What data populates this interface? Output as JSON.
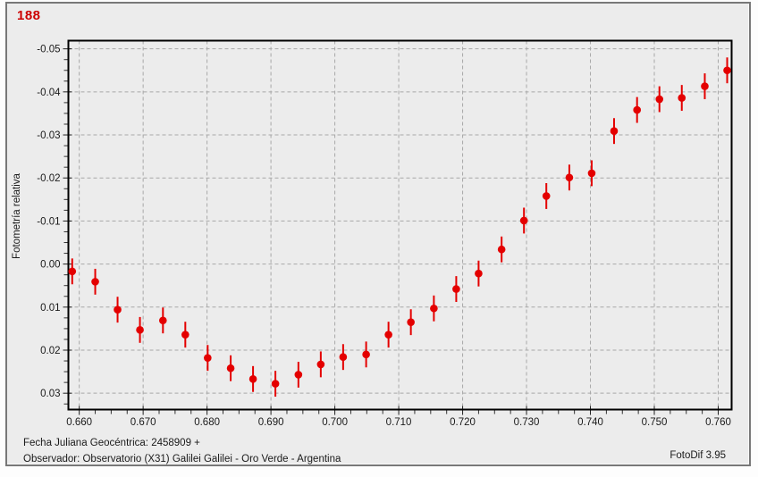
{
  "window": {
    "background": "#ececec",
    "border_color": "#787878"
  },
  "header": {
    "title": "188",
    "title_color": "#cc0000"
  },
  "footer": {
    "line1": "Fecha Juliana Geocéntrica: 2458909 +",
    "line2": "Observador: Observatorio (X31) Galilei Galilei - Oro Verde - Argentina",
    "app_version": "FotoDif 3.95"
  },
  "chart_data": {
    "type": "scatter",
    "title": "188",
    "xlabel": "",
    "ylabel": "Fotometría relativa",
    "grid": true,
    "grid_color": "#a8a8a8",
    "axis_color": "#000000",
    "marker_color": "#e40000",
    "error_bar_color": "#e40000",
    "plot_background": "#ececec",
    "x_axis": {
      "min": 0.6583,
      "max": 0.7621,
      "major_tick_step": 0.01,
      "minor_tick_step": 0.0025,
      "tick_labels": [
        "0.660",
        "0.670",
        "0.680",
        "0.690",
        "0.700",
        "0.710",
        "0.720",
        "0.730",
        "0.740",
        "0.750",
        "0.760"
      ]
    },
    "y_axis": {
      "min": -0.0519,
      "max": 0.0338,
      "inverted": true,
      "major_tick_step": 0.01,
      "minor_tick_step": 0.0025,
      "tick_labels": [
        "-0.05",
        "-0.04",
        "-0.03",
        "-0.02",
        "-0.01",
        "0.00",
        "0.01",
        "0.02",
        "0.03"
      ]
    },
    "points": [
      {
        "x": 0.6589,
        "y": 0.0017,
        "err": 0.003
      },
      {
        "x": 0.6625,
        "y": 0.0041,
        "err": 0.003
      },
      {
        "x": 0.666,
        "y": 0.0106,
        "err": 0.003
      },
      {
        "x": 0.6695,
        "y": 0.0153,
        "err": 0.003
      },
      {
        "x": 0.6731,
        "y": 0.0131,
        "err": 0.003
      },
      {
        "x": 0.6766,
        "y": 0.0164,
        "err": 0.003
      },
      {
        "x": 0.6801,
        "y": 0.0218,
        "err": 0.003
      },
      {
        "x": 0.6837,
        "y": 0.0242,
        "err": 0.003
      },
      {
        "x": 0.6872,
        "y": 0.0267,
        "err": 0.003
      },
      {
        "x": 0.6907,
        "y": 0.0278,
        "err": 0.003
      },
      {
        "x": 0.6943,
        "y": 0.0257,
        "err": 0.003
      },
      {
        "x": 0.6978,
        "y": 0.0233,
        "err": 0.003
      },
      {
        "x": 0.7013,
        "y": 0.0216,
        "err": 0.003
      },
      {
        "x": 0.7049,
        "y": 0.021,
        "err": 0.003
      },
      {
        "x": 0.7084,
        "y": 0.0164,
        "err": 0.003
      },
      {
        "x": 0.7119,
        "y": 0.0135,
        "err": 0.003
      },
      {
        "x": 0.7155,
        "y": 0.0103,
        "err": 0.003
      },
      {
        "x": 0.719,
        "y": 0.0058,
        "err": 0.003
      },
      {
        "x": 0.7225,
        "y": 0.0022,
        "err": 0.003
      },
      {
        "x": 0.7261,
        "y": -0.0034,
        "err": 0.003
      },
      {
        "x": 0.7296,
        "y": -0.0101,
        "err": 0.003
      },
      {
        "x": 0.7331,
        "y": -0.0158,
        "err": 0.003
      },
      {
        "x": 0.7367,
        "y": -0.0201,
        "err": 0.003
      },
      {
        "x": 0.7402,
        "y": -0.0211,
        "err": 0.003
      },
      {
        "x": 0.7437,
        "y": -0.0309,
        "err": 0.003
      },
      {
        "x": 0.7473,
        "y": -0.0358,
        "err": 0.003
      },
      {
        "x": 0.7508,
        "y": -0.0383,
        "err": 0.003
      },
      {
        "x": 0.7543,
        "y": -0.0386,
        "err": 0.003
      },
      {
        "x": 0.7579,
        "y": -0.0413,
        "err": 0.003
      },
      {
        "x": 0.7614,
        "y": -0.045,
        "err": 0.003
      }
    ]
  }
}
